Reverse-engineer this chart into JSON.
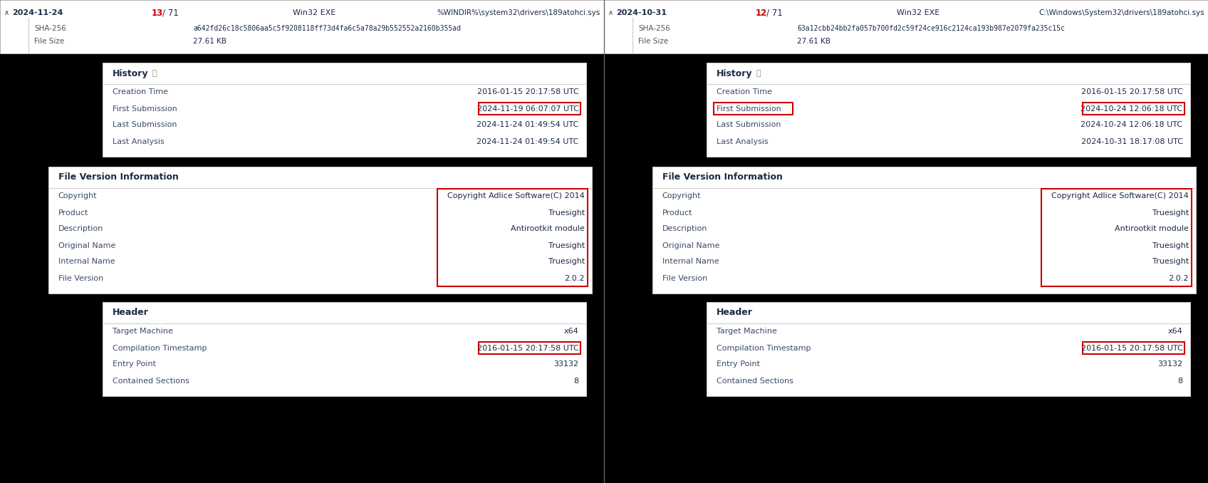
{
  "bg_color": "#000000",
  "left": {
    "header_date": "2024-11-24",
    "header_score": "13",
    "header_total": "71",
    "header_type": "Win32 EXE",
    "header_path": "%WINDIR%\\system32\\drivers\\189atohci.sys",
    "sha256": "a642fd26c18c5806aa5c5f9208118ff73d4fa6c5a78a29b552552a2160b355ad",
    "filesize": "27.61 KB",
    "history_title": "History",
    "history_rows": [
      [
        "Creation Time",
        "2016-01-15 20:17:58 UTC",
        false
      ],
      [
        "First Submission",
        "2024-11-19 06:07:07 UTC",
        true
      ],
      [
        "Last Submission",
        "2024-11-24 01:49:54 UTC",
        false
      ],
      [
        "Last Analysis",
        "2024-11-24 01:49:54 UTC",
        false
      ]
    ],
    "fvi_title": "File Version Information",
    "fvi_rows": [
      [
        "Copyright",
        "Copyright Adlice Software(C) 2014",
        true
      ],
      [
        "Product",
        "Truesight",
        true
      ],
      [
        "Description",
        "Antirootkit module",
        true
      ],
      [
        "Original Name",
        "Truesight",
        true
      ],
      [
        "Internal Name",
        "Truesight",
        true
      ],
      [
        "File Version",
        "2.0.2",
        true
      ]
    ],
    "header_section_title": "Header",
    "header_rows": [
      [
        "Target Machine",
        "x64",
        false
      ],
      [
        "Compilation Timestamp",
        "2016-01-15 20:17:58 UTC",
        true
      ],
      [
        "Entry Point",
        "33132",
        false
      ],
      [
        "Contained Sections",
        "8",
        false
      ]
    ]
  },
  "right": {
    "header_date": "2024-10-31",
    "header_score": "12",
    "header_total": "71",
    "header_type": "Win32 EXE",
    "header_path": "C:\\Windows\\System32\\drivers\\189atohci.sys",
    "sha256": "63a12cbb24bb2fa057b700fd2c59f24ce916c2124ca193b987e2079fa235c15c",
    "filesize": "27.61 KB",
    "history_title": "History",
    "history_rows": [
      [
        "Creation Time",
        "2016-01-15 20:17:58 UTC",
        false
      ],
      [
        "First Submission",
        "2024-10-24 12:06:18 UTC",
        true
      ],
      [
        "Last Submission",
        "2024-10-24 12:06:18 UTC",
        false
      ],
      [
        "Last Analysis",
        "2024-10-31 18:17:08 UTC",
        false
      ]
    ],
    "fvi_title": "File Version Information",
    "fvi_rows": [
      [
        "Copyright",
        "Copyright Adlice Software(C) 2014",
        true
      ],
      [
        "Product",
        "Truesight",
        true
      ],
      [
        "Description",
        "Antirootkit module",
        true
      ],
      [
        "Original Name",
        "Truesight",
        true
      ],
      [
        "Internal Name",
        "Truesight",
        true
      ],
      [
        "File Version",
        "2.0.2",
        true
      ]
    ],
    "header_section_title": "Header",
    "header_rows": [
      [
        "Target Machine",
        "x64",
        false
      ],
      [
        "Compilation Timestamp",
        "2016-01-15 20:17:58 UTC",
        true
      ],
      [
        "Entry Point",
        "33132",
        false
      ],
      [
        "Contained Sections",
        "8",
        false
      ]
    ]
  },
  "score_color": "#cc0000",
  "text_dark": "#1c2a47",
  "text_label": "#3a4a6a",
  "text_gray": "#555555",
  "highlight_color": "#cc0000",
  "separator_color": "#d0d0d0",
  "section_title_color": "#1c2a47",
  "top_bar_bg": "#ffffff",
  "top_bar_border": "#cccccc",
  "panel_bg": "#ffffff",
  "panel_border": "#cccccc"
}
